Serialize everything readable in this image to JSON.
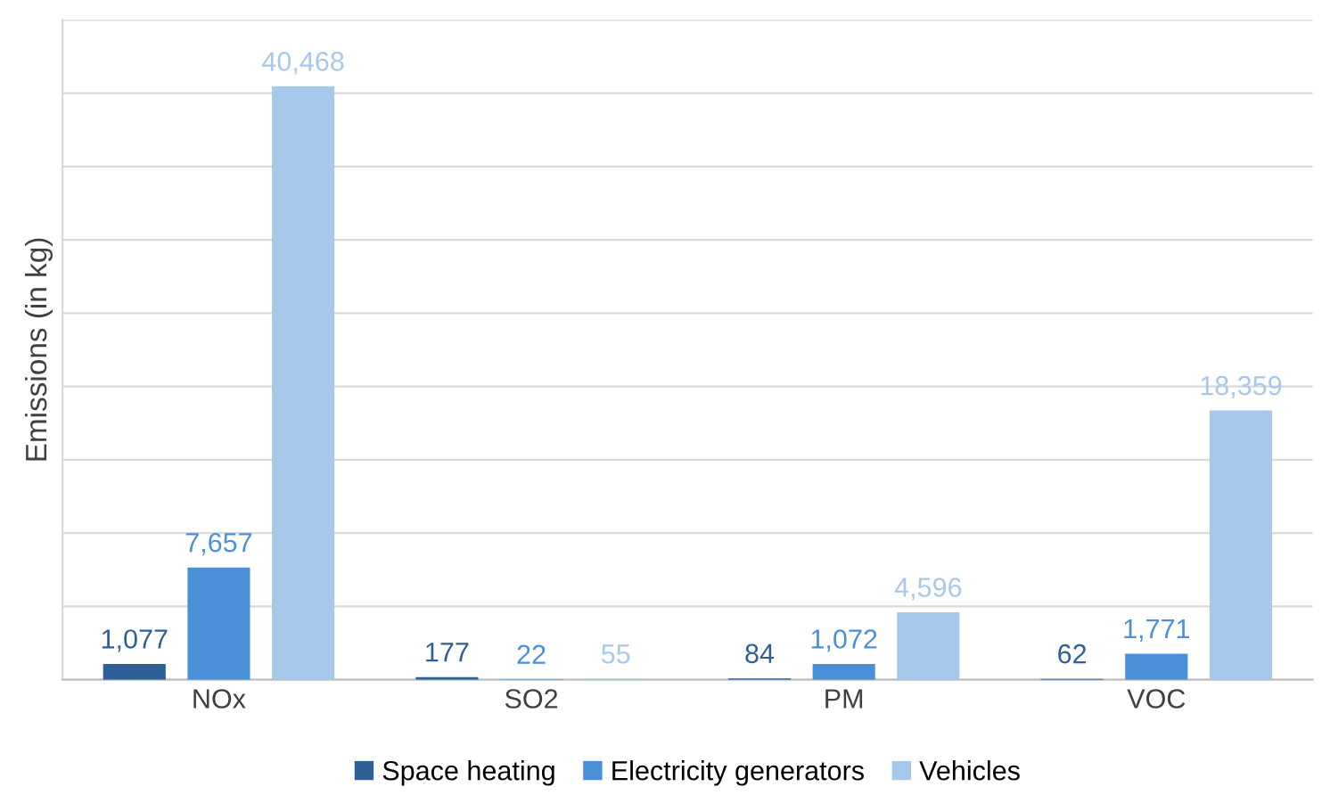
{
  "chart_data": {
    "type": "bar",
    "ylabel": "Emissions (in kg)",
    "categories": [
      "NOx",
      "SO2",
      "PM",
      "VOC"
    ],
    "series": [
      {
        "name": "Space heating",
        "color": "#2e5f96",
        "values": [
          1077,
          177,
          84,
          62
        ],
        "value_labels": [
          "1,077",
          "177",
          "84",
          "62"
        ]
      },
      {
        "name": "Electricity generators",
        "color": "#4a90d9",
        "values": [
          7657,
          22,
          1072,
          1771
        ],
        "value_labels": [
          "7,657",
          "22",
          "1,072",
          "1,771"
        ]
      },
      {
        "name": "Vehicles",
        "color": "#a6c8ea",
        "values": [
          40468,
          55,
          4596,
          18359
        ],
        "value_labels": [
          "40,468",
          "55",
          "4,596",
          "18,359"
        ]
      }
    ],
    "ylim": [
      0,
      45000
    ],
    "yticks": [
      {
        "value": 0,
        "label": null
      },
      {
        "value": 5000,
        "label": null
      },
      {
        "value": 10000,
        "label": null
      },
      {
        "value": 15000,
        "label": null
      },
      {
        "value": 20000,
        "label": null
      },
      {
        "value": 25000,
        "label": null
      },
      {
        "value": 30000,
        "label": null
      },
      {
        "value": 35000,
        "label": null
      },
      {
        "value": 40000,
        "label": null
      },
      {
        "value": 45000,
        "label": null
      }
    ],
    "tick_labels": "x",
    "grid": "y",
    "legend": "bottom"
  }
}
